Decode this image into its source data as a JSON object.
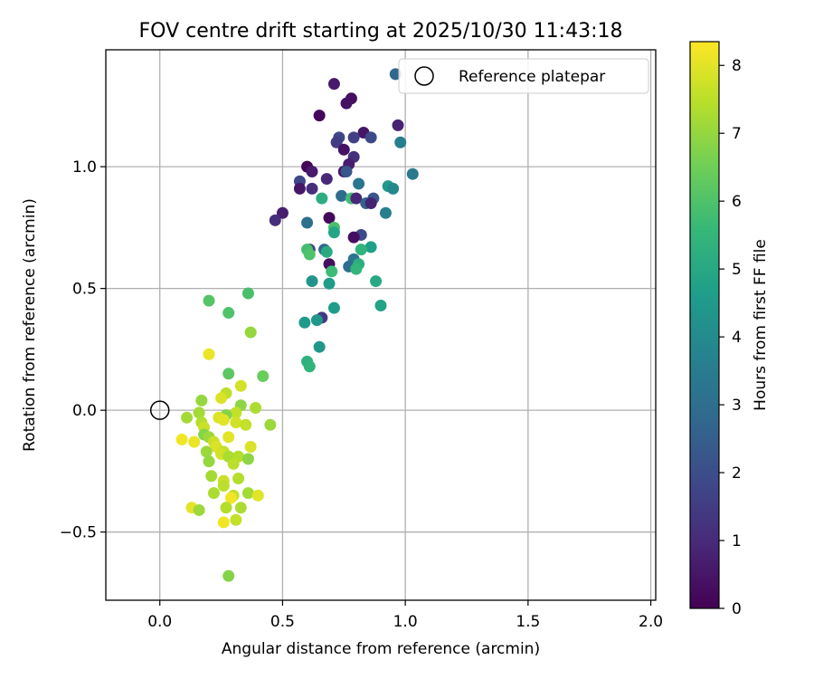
{
  "chart_data": {
    "type": "scatter",
    "title": "FOV centre drift starting at 2025/10/30 11:43:18",
    "xlabel": "Angular distance from reference (arcmin)",
    "ylabel": "Rotation from reference (arcmin)",
    "xlim": [
      -0.22,
      2.02
    ],
    "ylim": [
      -0.78,
      1.48
    ],
    "xticks": [
      0.0,
      0.5,
      1.0,
      1.5,
      2.0
    ],
    "xtick_labels": [
      "0.0",
      "0.5",
      "1.0",
      "1.5",
      "2.0"
    ],
    "yticks": [
      -0.5,
      0.0,
      0.5,
      1.0
    ],
    "ytick_labels": [
      "−0.5",
      "0.0",
      "0.5",
      "1.0"
    ],
    "grid": true,
    "legend": {
      "position": "upper-right",
      "label": "Reference platepar"
    },
    "reference_point": {
      "x": 0.0,
      "y": 0.0
    },
    "colorbar": {
      "label": "Hours from first FF file",
      "min": 0,
      "max": 8.35,
      "ticks": [
        0,
        1,
        2,
        3,
        4,
        5,
        6,
        7,
        8
      ],
      "tick_labels": [
        "0",
        "1",
        "2",
        "3",
        "4",
        "5",
        "6",
        "7",
        "8"
      ],
      "colormap": "viridis",
      "colormap_stops": [
        "#440154",
        "#482878",
        "#3e4989",
        "#31688e",
        "#26828e",
        "#1f9e89",
        "#35b779",
        "#6ece58",
        "#b5de2b",
        "#fde725"
      ]
    },
    "points": [
      {
        "x": 0.71,
        "y": 1.34,
        "h": 0.6
      },
      {
        "x": 0.78,
        "y": 1.28,
        "h": 0.3
      },
      {
        "x": 0.65,
        "y": 1.21,
        "h": 0.2
      },
      {
        "x": 0.76,
        "y": 1.26,
        "h": 0.4
      },
      {
        "x": 0.96,
        "y": 1.38,
        "h": 2.8
      },
      {
        "x": 0.97,
        "y": 1.17,
        "h": 0.8
      },
      {
        "x": 0.83,
        "y": 1.14,
        "h": 0.5
      },
      {
        "x": 0.73,
        "y": 1.12,
        "h": 1.8
      },
      {
        "x": 0.79,
        "y": 1.12,
        "h": 1.6
      },
      {
        "x": 0.86,
        "y": 1.12,
        "h": 1.9
      },
      {
        "x": 0.98,
        "y": 1.1,
        "h": 3.6
      },
      {
        "x": 0.72,
        "y": 1.1,
        "h": 1.5
      },
      {
        "x": 0.75,
        "y": 1.07,
        "h": 0.4
      },
      {
        "x": 0.79,
        "y": 1.04,
        "h": 1.2
      },
      {
        "x": 0.77,
        "y": 1.01,
        "h": 0.7
      },
      {
        "x": 0.6,
        "y": 1.0,
        "h": 0.1
      },
      {
        "x": 0.62,
        "y": 0.98,
        "h": 0.6
      },
      {
        "x": 0.75,
        "y": 0.98,
        "h": 0.5
      },
      {
        "x": 0.76,
        "y": 0.98,
        "h": 2.3
      },
      {
        "x": 1.03,
        "y": 0.97,
        "h": 3.4
      },
      {
        "x": 0.68,
        "y": 0.95,
        "h": 0.9
      },
      {
        "x": 0.57,
        "y": 0.94,
        "h": 1.8
      },
      {
        "x": 0.81,
        "y": 0.93,
        "h": 3.3
      },
      {
        "x": 0.93,
        "y": 0.92,
        "h": 4.5
      },
      {
        "x": 0.95,
        "y": 0.91,
        "h": 3.9
      },
      {
        "x": 0.57,
        "y": 0.91,
        "h": 0.5
      },
      {
        "x": 0.62,
        "y": 0.91,
        "h": 1.1
      },
      {
        "x": 0.74,
        "y": 0.88,
        "h": 2.9
      },
      {
        "x": 0.87,
        "y": 0.87,
        "h": 2.2
      },
      {
        "x": 0.66,
        "y": 0.87,
        "h": 5.2
      },
      {
        "x": 0.78,
        "y": 0.87,
        "h": 5.8
      },
      {
        "x": 0.8,
        "y": 0.87,
        "h": 0.9
      },
      {
        "x": 0.84,
        "y": 0.85,
        "h": 2.7
      },
      {
        "x": 0.86,
        "y": 0.85,
        "h": 0.8
      },
      {
        "x": 0.5,
        "y": 0.81,
        "h": 0.7
      },
      {
        "x": 0.92,
        "y": 0.81,
        "h": 3.6
      },
      {
        "x": 0.69,
        "y": 0.79,
        "h": 0.2
      },
      {
        "x": 0.47,
        "y": 0.78,
        "h": 1.1
      },
      {
        "x": 0.6,
        "y": 0.77,
        "h": 3.1
      },
      {
        "x": 0.71,
        "y": 0.75,
        "h": 5.9
      },
      {
        "x": 0.71,
        "y": 0.73,
        "h": 4.9
      },
      {
        "x": 0.82,
        "y": 0.72,
        "h": 1.9
      },
      {
        "x": 0.79,
        "y": 0.71,
        "h": 0.3
      },
      {
        "x": 0.86,
        "y": 0.67,
        "h": 4.7
      },
      {
        "x": 0.82,
        "y": 0.66,
        "h": 5.4
      },
      {
        "x": 0.61,
        "y": 0.66,
        "h": 1.6
      },
      {
        "x": 0.6,
        "y": 0.66,
        "h": 5.8
      },
      {
        "x": 0.67,
        "y": 0.66,
        "h": 2.7
      },
      {
        "x": 0.68,
        "y": 0.65,
        "h": 5.1
      },
      {
        "x": 0.61,
        "y": 0.64,
        "h": 6.0
      },
      {
        "x": 0.79,
        "y": 0.62,
        "h": 3.2
      },
      {
        "x": 0.69,
        "y": 0.6,
        "h": 0.3
      },
      {
        "x": 0.77,
        "y": 0.59,
        "h": 3.0
      },
      {
        "x": 0.81,
        "y": 0.6,
        "h": 5.2
      },
      {
        "x": 0.8,
        "y": 0.58,
        "h": 5.5
      },
      {
        "x": 0.7,
        "y": 0.57,
        "h": 5.7
      },
      {
        "x": 0.62,
        "y": 0.53,
        "h": 4.3
      },
      {
        "x": 0.69,
        "y": 0.52,
        "h": 4.6
      },
      {
        "x": 0.88,
        "y": 0.53,
        "h": 5.0
      },
      {
        "x": 0.36,
        "y": 0.48,
        "h": 5.9
      },
      {
        "x": 0.2,
        "y": 0.45,
        "h": 6.1
      },
      {
        "x": 0.9,
        "y": 0.43,
        "h": 4.8
      },
      {
        "x": 0.71,
        "y": 0.42,
        "h": 4.6
      },
      {
        "x": 0.28,
        "y": 0.4,
        "h": 6.0
      },
      {
        "x": 0.66,
        "y": 0.38,
        "h": 1.4
      },
      {
        "x": 0.64,
        "y": 0.37,
        "h": 4.4
      },
      {
        "x": 0.59,
        "y": 0.36,
        "h": 4.5
      },
      {
        "x": 0.37,
        "y": 0.32,
        "h": 7.0
      },
      {
        "x": 0.65,
        "y": 0.26,
        "h": 4.4
      },
      {
        "x": 0.2,
        "y": 0.23,
        "h": 8.1
      },
      {
        "x": 0.6,
        "y": 0.2,
        "h": 5.3
      },
      {
        "x": 0.61,
        "y": 0.18,
        "h": 5.4
      },
      {
        "x": 0.28,
        "y": 0.15,
        "h": 6.2
      },
      {
        "x": 0.42,
        "y": 0.14,
        "h": 6.4
      },
      {
        "x": 0.33,
        "y": 0.1,
        "h": 7.8
      },
      {
        "x": 0.27,
        "y": 0.07,
        "h": 7.5
      },
      {
        "x": 0.25,
        "y": 0.05,
        "h": 7.9
      },
      {
        "x": 0.17,
        "y": 0.04,
        "h": 7.0
      },
      {
        "x": 0.33,
        "y": 0.02,
        "h": 6.9
      },
      {
        "x": 0.39,
        "y": 0.01,
        "h": 7.3
      },
      {
        "x": 0.16,
        "y": -0.01,
        "h": 7.2
      },
      {
        "x": 0.31,
        "y": -0.01,
        "h": 7.6
      },
      {
        "x": 0.27,
        "y": -0.02,
        "h": 6.8
      },
      {
        "x": 0.11,
        "y": -0.03,
        "h": 7.2
      },
      {
        "x": 0.24,
        "y": -0.03,
        "h": 7.9
      },
      {
        "x": 0.26,
        "y": -0.04,
        "h": 8.0
      },
      {
        "x": 0.17,
        "y": -0.05,
        "h": 7.4
      },
      {
        "x": 0.31,
        "y": -0.05,
        "h": 7.8
      },
      {
        "x": 0.45,
        "y": -0.06,
        "h": 7.1
      },
      {
        "x": 0.35,
        "y": -0.06,
        "h": 7.6
      },
      {
        "x": 0.18,
        "y": -0.07,
        "h": 7.7
      },
      {
        "x": 0.18,
        "y": -0.1,
        "h": 6.8
      },
      {
        "x": 0.2,
        "y": -0.11,
        "h": 7.1
      },
      {
        "x": 0.28,
        "y": -0.11,
        "h": 8.0
      },
      {
        "x": 0.09,
        "y": -0.12,
        "h": 8.2
      },
      {
        "x": 0.14,
        "y": -0.13,
        "h": 8.1
      },
      {
        "x": 0.22,
        "y": -0.13,
        "h": 7.7
      },
      {
        "x": 0.23,
        "y": -0.15,
        "h": 7.9
      },
      {
        "x": 0.37,
        "y": -0.15,
        "h": 7.9
      },
      {
        "x": 0.19,
        "y": -0.17,
        "h": 7.1
      },
      {
        "x": 0.26,
        "y": -0.17,
        "h": 7.6
      },
      {
        "x": 0.25,
        "y": -0.18,
        "h": 7.8
      },
      {
        "x": 0.32,
        "y": -0.19,
        "h": 7.4
      },
      {
        "x": 0.28,
        "y": -0.19,
        "h": 7.3
      },
      {
        "x": 0.36,
        "y": -0.2,
        "h": 6.9
      },
      {
        "x": 0.2,
        "y": -0.21,
        "h": 7.0
      },
      {
        "x": 0.3,
        "y": -0.22,
        "h": 7.5
      },
      {
        "x": 0.21,
        "y": -0.27,
        "h": 7.2
      },
      {
        "x": 0.32,
        "y": -0.28,
        "h": 7.4
      },
      {
        "x": 0.26,
        "y": -0.29,
        "h": 7.7
      },
      {
        "x": 0.26,
        "y": -0.31,
        "h": 7.5
      },
      {
        "x": 0.22,
        "y": -0.34,
        "h": 7.3
      },
      {
        "x": 0.36,
        "y": -0.34,
        "h": 7.2
      },
      {
        "x": 0.4,
        "y": -0.35,
        "h": 8.0
      },
      {
        "x": 0.3,
        "y": -0.35,
        "h": 7.6
      },
      {
        "x": 0.29,
        "y": -0.36,
        "h": 8.2
      },
      {
        "x": 0.33,
        "y": -0.4,
        "h": 7.3
      },
      {
        "x": 0.13,
        "y": -0.4,
        "h": 8.0
      },
      {
        "x": 0.16,
        "y": -0.41,
        "h": 7.1
      },
      {
        "x": 0.27,
        "y": -0.4,
        "h": 7.4
      },
      {
        "x": 0.31,
        "y": -0.45,
        "h": 7.6
      },
      {
        "x": 0.26,
        "y": -0.46,
        "h": 8.2
      },
      {
        "x": 0.28,
        "y": -0.68,
        "h": 6.8
      }
    ]
  }
}
